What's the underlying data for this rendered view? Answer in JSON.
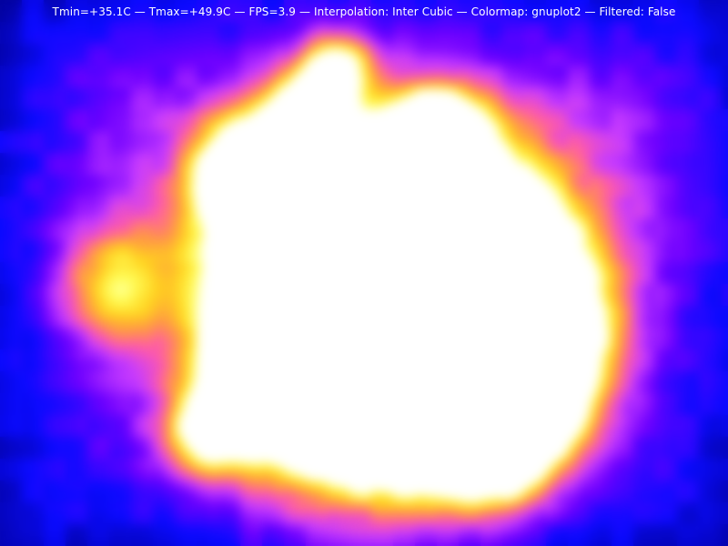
{
  "window": {
    "status_line": "Tmin=+35.1C — Tmax=+49.9C — FPS=3.9 — Interpolation: Inter Cubic — Colormap: gnuplot2 — Filtered: False"
  },
  "thermal": {
    "tmin_c": 35.1,
    "tmax_c": 49.9,
    "fps": 3.9,
    "interpolation": "Inter Cubic",
    "colormap": "gnuplot2",
    "filtered": false,
    "colormap_stops": [
      "#000000",
      "#000080",
      "#0000ff",
      "#6a00ff",
      "#c83cff",
      "#ff5aa0",
      "#ff8a40",
      "#ffd21e",
      "#ffff60",
      "#ffffff"
    ]
  }
}
